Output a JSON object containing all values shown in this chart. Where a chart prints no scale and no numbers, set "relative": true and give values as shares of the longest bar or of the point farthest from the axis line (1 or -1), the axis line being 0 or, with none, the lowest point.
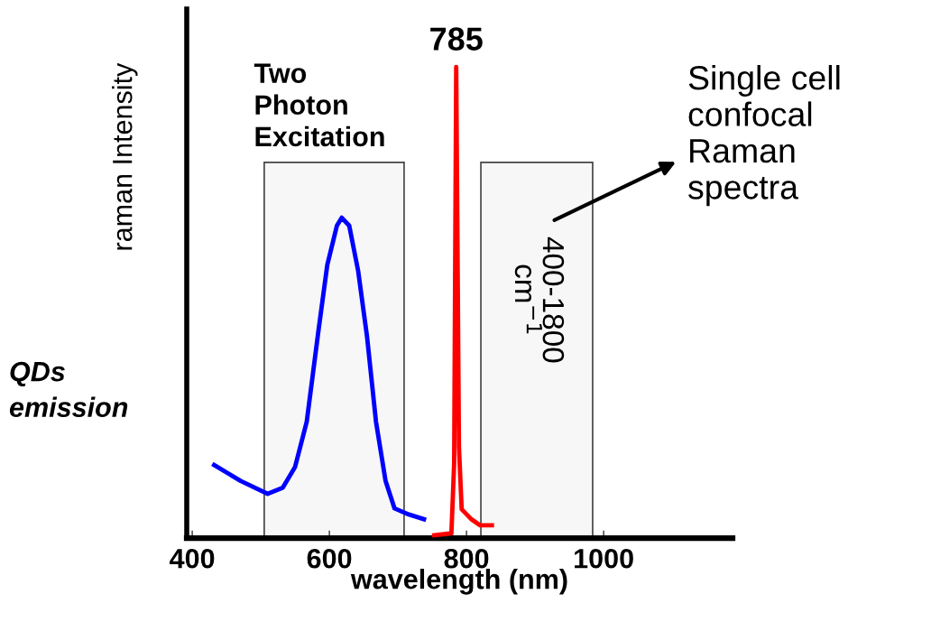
{
  "chart_data": {
    "type": "line",
    "relative": true,
    "xlabel": "wavelength (nm)",
    "ylabel": "raman Intensity",
    "xlim": [
      392,
      1188
    ],
    "xticks": [
      400,
      600,
      800,
      1000
    ],
    "grid": false,
    "marker": "none",
    "line_style": "solid",
    "series": [
      {
        "color": "#0000ff",
        "x": [
          432,
          471,
          510,
          532,
          550,
          567,
          584,
          597,
          611,
          618,
          629,
          642,
          655,
          668,
          682,
          695,
          716,
          738
        ],
        "values": [
          0.155,
          0.121,
          0.094,
          0.107,
          0.151,
          0.247,
          0.439,
          0.58,
          0.663,
          0.68,
          0.663,
          0.567,
          0.427,
          0.247,
          0.121,
          0.063,
          0.05,
          0.04
        ]
      },
      {
        "color": "#ff0000",
        "x": [
          753,
          778,
          782,
          785,
          789,
          793,
          807,
          820,
          837
        ],
        "values": [
          0.006,
          0.01,
          0.159,
          1.0,
          0.193,
          0.061,
          0.04,
          0.027,
          0.027
        ]
      }
    ],
    "bands": [
      {
        "axis": "x",
        "from": 505,
        "to": 709,
        "label": "Two Photon Excitation",
        "color": "#f7f7f7"
      },
      {
        "axis": "x",
        "from": 821,
        "to": 984,
        "label": "400-1800 cm$^{−1}$",
        "color": "#f7f7f7"
      }
    ],
    "annotations": [
      {
        "text": "785",
        "x": 785,
        "y": 1.0
      },
      "Single cell confocal Raman spectra",
      "QDs emission"
    ]
  }
}
